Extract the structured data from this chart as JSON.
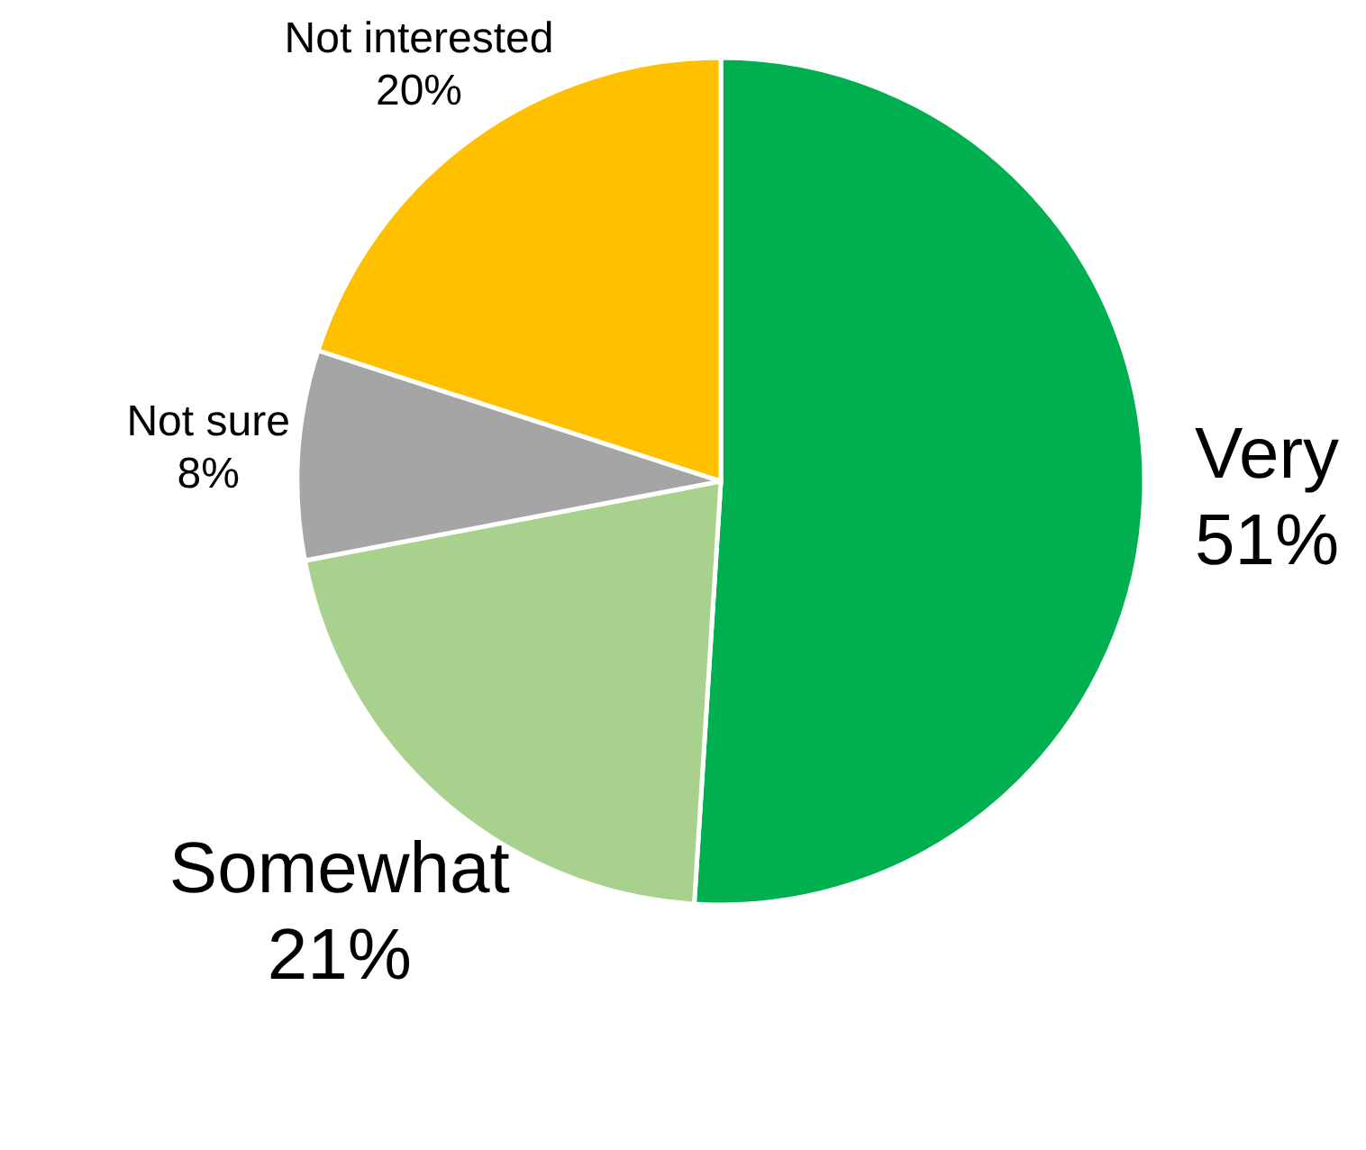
{
  "chart_data": {
    "type": "pie",
    "categories": [
      "Very",
      "Somewhat",
      "Not sure",
      "Not interested"
    ],
    "values": [
      51,
      21,
      8,
      20
    ],
    "colors": [
      "#00b050",
      "#a9d18e",
      "#a5a5a5",
      "#ffc000"
    ],
    "value_labels": [
      "51%",
      "21%",
      "8%",
      "20%"
    ]
  }
}
